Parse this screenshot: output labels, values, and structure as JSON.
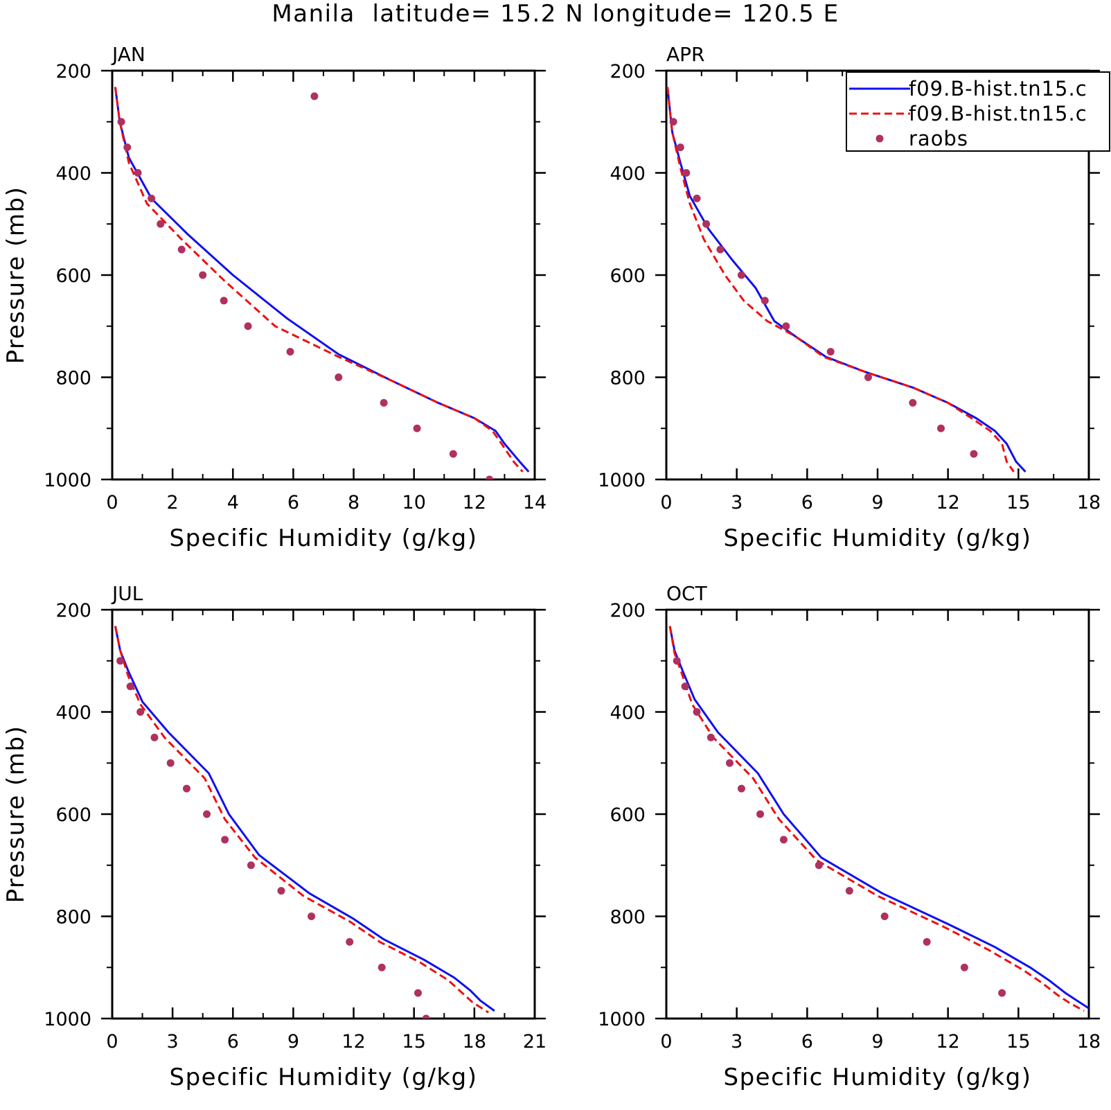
{
  "title": "Manila  latitude= 15.2 N longitude= 120.5 E",
  "colors": {
    "model1": "#1010ee",
    "model2": "#ee1010",
    "obs": "#b03060",
    "axis": "#000000"
  },
  "legend": {
    "entries": [
      {
        "label": "f09.B-hist.tn15.c",
        "style": "solid"
      },
      {
        "label": "f09.B-hist.tn15.c",
        "style": "dashed"
      },
      {
        "label": "raobs",
        "style": "marker"
      }
    ]
  },
  "chart_data": [
    {
      "type": "line",
      "panel_label": "JAN",
      "xlabel": "Specific Humidity (g/kg)",
      "ylabel": "Pressure (mb)",
      "xlim": [
        0,
        14
      ],
      "ylim": [
        1000,
        200
      ],
      "xticks": [
        0,
        2,
        4,
        6,
        8,
        10,
        12,
        14
      ],
      "yticks": [
        200,
        400,
        600,
        800,
        1000
      ],
      "legend": false,
      "series": [
        {
          "name": "f09.B-hist.tn15.c",
          "style": "solid",
          "x": [
            0.1,
            0.25,
            0.55,
            1.3,
            2.5,
            4.0,
            5.8,
            7.5,
            9.2,
            10.8,
            12.0,
            12.7,
            13.0,
            13.5,
            13.8
          ],
          "y": [
            232,
            300,
            370,
            450,
            520,
            600,
            685,
            755,
            805,
            850,
            880,
            905,
            930,
            965,
            985
          ]
        },
        {
          "name": "f09.B-hist.tn15.c",
          "style": "dashed",
          "x": [
            0.1,
            0.25,
            0.55,
            1.15,
            2.3,
            3.7,
            5.4,
            7.5,
            9.2,
            10.8,
            12.0,
            12.6,
            12.9,
            13.3,
            13.6
          ],
          "y": [
            232,
            300,
            380,
            460,
            530,
            610,
            700,
            760,
            805,
            850,
            880,
            905,
            930,
            965,
            985
          ]
        },
        {
          "name": "raobs",
          "style": "marker",
          "x": [
            6.7,
            0.3,
            0.5,
            0.85,
            1.3,
            1.6,
            2.3,
            3.0,
            3.7,
            4.5,
            5.9,
            7.5,
            9.0,
            10.1,
            11.3,
            12.5
          ],
          "y": [
            250,
            300,
            350,
            400,
            450,
            500,
            550,
            600,
            650,
            700,
            750,
            800,
            850,
            900,
            950,
            1000
          ]
        }
      ]
    },
    {
      "type": "line",
      "panel_label": "APR",
      "xlabel": "Specific Humidity (g/kg)",
      "ylabel": "",
      "xlim": [
        0,
        18
      ],
      "ylim": [
        1000,
        200
      ],
      "xticks": [
        0,
        3,
        6,
        9,
        12,
        15,
        18
      ],
      "yticks": [
        200,
        400,
        600,
        800,
        1000
      ],
      "legend": true,
      "series": [
        {
          "name": "f09.B-hist.tn15.c",
          "style": "solid",
          "x": [
            0.05,
            0.25,
            0.6,
            1.0,
            1.8,
            2.8,
            3.8,
            4.6,
            5.5,
            6.8,
            8.5,
            10.5,
            12.0,
            13.2,
            14.0,
            14.5,
            14.9,
            15.3
          ],
          "y": [
            232,
            320,
            380,
            445,
            510,
            570,
            625,
            690,
            720,
            760,
            790,
            820,
            850,
            880,
            905,
            930,
            965,
            985
          ]
        },
        {
          "name": "f09.B-hist.tn15.c",
          "style": "dashed",
          "x": [
            0.05,
            0.25,
            0.6,
            1.0,
            1.6,
            2.5,
            3.3,
            4.3,
            5.5,
            6.7,
            8.5,
            10.5,
            12.0,
            13.0,
            13.8,
            14.3,
            14.5,
            14.8
          ],
          "y": [
            232,
            320,
            390,
            460,
            530,
            600,
            650,
            690,
            720,
            760,
            790,
            820,
            850,
            880,
            905,
            930,
            965,
            985
          ]
        },
        {
          "name": "raobs",
          "style": "marker",
          "x": [
            0.3,
            0.6,
            0.85,
            1.3,
            1.7,
            2.3,
            3.2,
            4.2,
            5.1,
            7.0,
            8.6,
            10.5,
            11.7,
            13.1
          ],
          "y": [
            300,
            350,
            400,
            450,
            500,
            550,
            600,
            650,
            700,
            750,
            800,
            850,
            900,
            950
          ]
        }
      ]
    },
    {
      "type": "line",
      "panel_label": "JUL",
      "xlabel": "Specific Humidity (g/kg)",
      "ylabel": "Pressure (mb)",
      "xlim": [
        0,
        21
      ],
      "ylim": [
        1000,
        200
      ],
      "xticks": [
        0,
        3,
        6,
        9,
        12,
        15,
        18,
        21
      ],
      "yticks": [
        200,
        400,
        600,
        800,
        1000
      ],
      "legend": false,
      "series": [
        {
          "name": "f09.B-hist.tn15.c",
          "style": "solid",
          "x": [
            0.15,
            0.4,
            0.8,
            1.5,
            2.8,
            4.8,
            5.8,
            7.3,
            9.8,
            12.0,
            13.5,
            15.5,
            17.0,
            17.8,
            18.3,
            19.0
          ],
          "y": [
            232,
            280,
            320,
            380,
            440,
            520,
            600,
            680,
            755,
            805,
            845,
            885,
            920,
            945,
            965,
            985
          ]
        },
        {
          "name": "f09.B-hist.tn15.c",
          "style": "dashed",
          "x": [
            0.15,
            0.4,
            0.8,
            1.4,
            2.6,
            4.6,
            5.6,
            7.1,
            9.5,
            11.8,
            13.3,
            15.3,
            16.7,
            17.4,
            17.9,
            18.7
          ],
          "y": [
            232,
            280,
            330,
            385,
            450,
            530,
            610,
            685,
            760,
            810,
            850,
            890,
            925,
            950,
            968,
            988
          ]
        },
        {
          "name": "raobs",
          "style": "marker",
          "x": [
            0.4,
            0.9,
            1.4,
            2.1,
            2.9,
            3.7,
            4.7,
            5.6,
            6.9,
            8.4,
            9.9,
            11.8,
            13.4,
            15.2,
            15.6
          ],
          "y": [
            300,
            350,
            400,
            450,
            500,
            550,
            600,
            650,
            700,
            750,
            800,
            850,
            900,
            950,
            1000
          ]
        }
      ]
    },
    {
      "type": "line",
      "panel_label": "OCT",
      "xlabel": "Specific Humidity (g/kg)",
      "ylabel": "",
      "xlim": [
        0,
        18
      ],
      "ylim": [
        1000,
        200
      ],
      "xticks": [
        0,
        3,
        6,
        9,
        12,
        15,
        18
      ],
      "yticks": [
        200,
        400,
        600,
        800,
        1000
      ],
      "legend": false,
      "series": [
        {
          "name": "f09.B-hist.tn15.c",
          "style": "solid",
          "x": [
            0.15,
            0.35,
            0.7,
            1.2,
            2.2,
            3.9,
            5.0,
            6.6,
            9.2,
            12.0,
            14.0,
            15.5,
            16.3,
            17.0,
            17.5,
            18.0
          ],
          "y": [
            232,
            280,
            320,
            375,
            440,
            520,
            600,
            685,
            755,
            815,
            860,
            900,
            925,
            950,
            965,
            980
          ]
        },
        {
          "name": "f09.B-hist.tn15.c",
          "style": "dashed",
          "x": [
            0.15,
            0.35,
            0.7,
            1.1,
            2.0,
            3.7,
            4.8,
            6.4,
            9.0,
            11.8,
            13.7,
            15.2,
            16.0,
            16.7,
            17.2,
            17.8
          ],
          "y": [
            232,
            285,
            330,
            385,
            450,
            530,
            610,
            690,
            760,
            820,
            865,
            905,
            930,
            955,
            970,
            985
          ]
        },
        {
          "name": "raobs",
          "style": "marker",
          "x": [
            0.45,
            0.8,
            1.3,
            1.9,
            2.7,
            3.2,
            4.0,
            5.0,
            6.5,
            7.8,
            9.3,
            11.1,
            12.7,
            14.3
          ],
          "y": [
            300,
            350,
            400,
            450,
            500,
            550,
            600,
            650,
            700,
            750,
            800,
            850,
            900,
            950
          ]
        }
      ]
    }
  ]
}
